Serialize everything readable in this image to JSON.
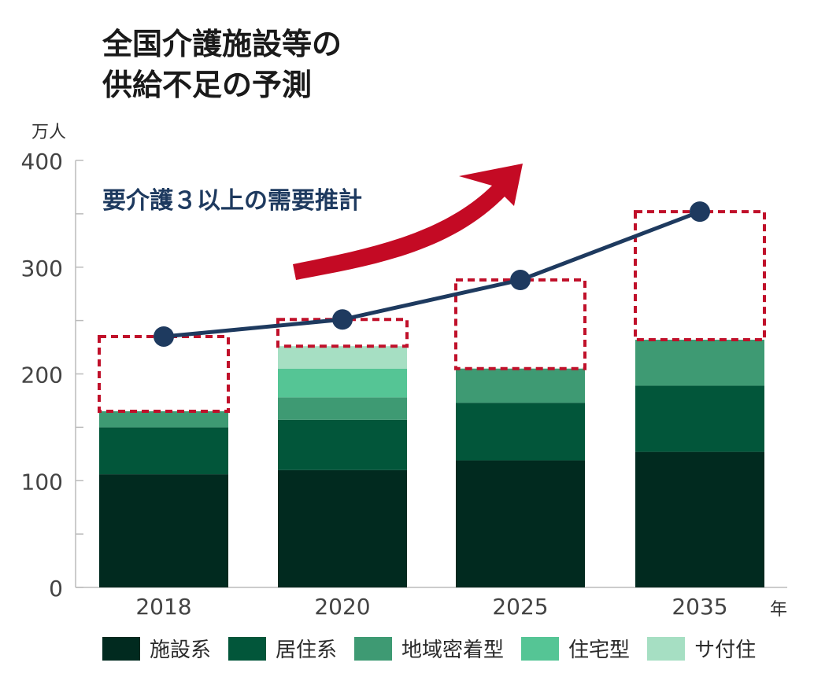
{
  "title": {
    "line1": "全国介護施設等の",
    "line2": "供給不足の予測"
  },
  "chart_data": {
    "type": "bar",
    "stacked": true,
    "title": "全国介護施設等の供給不足の予測",
    "ylabel": "万人",
    "xlabel": "年",
    "ylim": [
      0,
      400
    ],
    "yticks": [
      0,
      100,
      200,
      300,
      400
    ],
    "categories": [
      "2018",
      "2020",
      "2025",
      "2035"
    ],
    "series": [
      {
        "name": "施設系",
        "color": "#012a1f",
        "values": [
          106,
          110,
          119,
          127
        ]
      },
      {
        "name": "居住系",
        "color": "#02563a",
        "values": [
          44,
          47,
          54,
          62
        ]
      },
      {
        "name": "地域密着型",
        "color": "#3e9a73",
        "values": [
          15,
          21,
          32,
          43
        ]
      },
      {
        "name": "住宅型",
        "color": "#55c595",
        "values": [
          0,
          27,
          0,
          0
        ]
      },
      {
        "name": "サ付住",
        "color": "#a6dfc3",
        "values": [
          0,
          21,
          0,
          0
        ]
      }
    ],
    "demand_line": {
      "label": "要介護３以上の需要推計",
      "color": "#1e3a5f",
      "values": [
        235,
        251,
        288,
        352
      ]
    },
    "shortfall_box_color": "#c0102a",
    "arrow_color": "#c40a24"
  }
}
